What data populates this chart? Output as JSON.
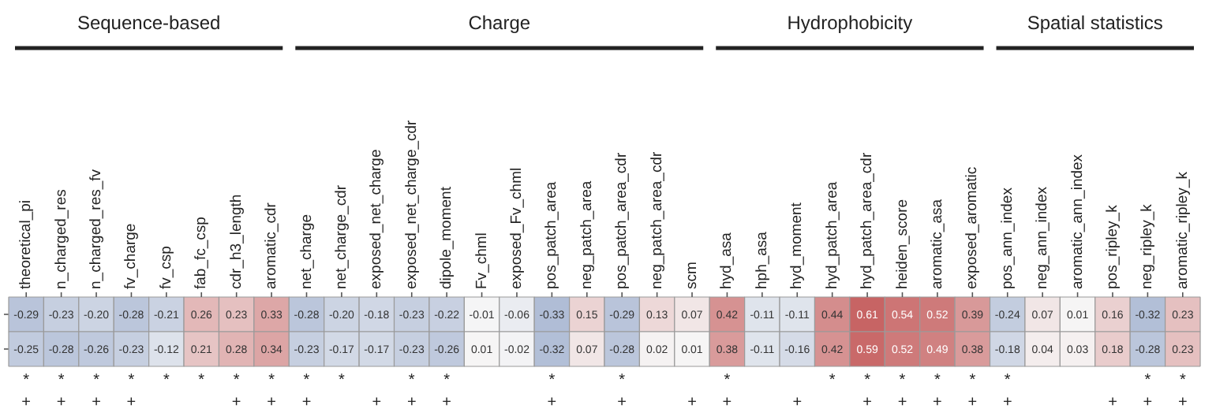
{
  "chart_data": [
    {
      "type": "heatmap",
      "categories": [
        "theoretical_pi",
        "n_charged_res",
        "n_charged_res_fv",
        "fv_charge",
        "fv_csp",
        "fab_fc_csp",
        "cdr_h3_length",
        "aromatic_cdr",
        "net_charge",
        "net_charge_cdr",
        "exposed_net_charge",
        "exposed_net_charge_cdr",
        "dipole_moment",
        "Fv_chml",
        "exposed_Fv_chml",
        "pos_patch_area",
        "neg_patch_area",
        "pos_patch_area_cdr",
        "neg_patch_area_cdr",
        "scm",
        "hyd_asa",
        "hph_asa",
        "hyd_moment",
        "hyd_patch_area",
        "hyd_patch_area_cdr",
        "heiden_score",
        "aromatic_asa",
        "exposed_aromatic",
        "pos_ann_index",
        "neg_ann_index",
        "aromatic_ann_index",
        "pos_ripley_k",
        "neg_ripley_k",
        "aromatic_ripley_k"
      ],
      "y_categories": [
        null,
        null
      ],
      "cells": [
        [
          -0.29,
          -0.23,
          -0.2,
          -0.28,
          -0.21,
          0.26,
          0.23,
          0.33,
          -0.28,
          -0.2,
          -0.18,
          -0.23,
          -0.22,
          -0.01,
          -0.06,
          -0.33,
          0.15,
          -0.29,
          0.13,
          0.07,
          0.42,
          -0.11,
          -0.11,
          0.44,
          0.61,
          0.54,
          0.52,
          0.39,
          -0.24,
          0.07,
          0.01,
          0.16,
          -0.32,
          0.23
        ],
        [
          -0.25,
          -0.28,
          -0.26,
          -0.23,
          -0.12,
          0.21,
          0.28,
          0.34,
          -0.23,
          -0.17,
          -0.17,
          -0.23,
          -0.26,
          0.01,
          -0.02,
          -0.32,
          0.07,
          -0.28,
          0.02,
          0.01,
          0.38,
          -0.11,
          -0.16,
          0.42,
          0.59,
          0.52,
          0.49,
          0.38,
          -0.18,
          0.04,
          0.03,
          0.18,
          -0.28,
          0.23
        ]
      ],
      "cell_labels": [
        [
          "-0.29",
          "-0.23",
          "-0.20",
          "-0.28",
          "-0.21",
          "0.26",
          "0.23",
          "0.33",
          "-0.28",
          "-0.20",
          "-0.18",
          "-0.23",
          "-0.22",
          "-0.01",
          "-0.06",
          "-0.33",
          "0.15",
          "-0.29",
          "0.13",
          "0.07",
          "0.42",
          "-0.11",
          "-0.11",
          "0.44",
          "0.61",
          "0.54",
          "0.52",
          "0.39",
          "-0.24",
          "0.07",
          "0.01",
          "0.16",
          "-0.32",
          "0.23"
        ],
        [
          "-0.25",
          "-0.28",
          "-0.26",
          "-0.23",
          "-0.12",
          "0.21",
          "0.28",
          "0.34",
          "-0.23",
          "-0.17",
          "-0.17",
          "-0.23",
          "-0.26",
          "0.01",
          "-0.02",
          "-0.32",
          "0.07",
          "-0.28",
          "0.02",
          "0.01",
          "0.38",
          "-0.11",
          "-0.16",
          "0.42",
          "0.59",
          "0.52",
          "0.49",
          "0.38",
          "-0.18",
          "0.04",
          "0.03",
          "0.18",
          "-0.28",
          "0.23"
        ]
      ],
      "annotations": [
        "Sequence-based",
        "Charge",
        "Hydrophobicity",
        "Spatial statistics"
      ]
    },
    {
      "type": "other",
      "annotations": [
        {
          "text": "*",
          "x": "theoretical_pi"
        },
        {
          "text": "*",
          "x": "n_charged_res"
        },
        {
          "text": "*",
          "x": "n_charged_res_fv"
        },
        {
          "text": "*",
          "x": "fv_charge"
        },
        {
          "text": "*",
          "x": "fv_csp"
        },
        {
          "text": "*",
          "x": "fab_fc_csp"
        },
        {
          "text": "*",
          "x": "cdr_h3_length"
        },
        {
          "text": "*",
          "x": "aromatic_cdr"
        },
        {
          "text": "*",
          "x": "net_charge"
        },
        {
          "text": "*",
          "x": "net_charge_cdr"
        },
        {
          "text": "*",
          "x": "exposed_net_charge_cdr"
        },
        {
          "text": "*",
          "x": "dipole_moment"
        },
        {
          "text": "*",
          "x": "pos_patch_area"
        },
        {
          "text": "*",
          "x": "pos_patch_area_cdr"
        },
        {
          "text": "*",
          "x": "hyd_asa"
        },
        {
          "text": "*",
          "x": "hyd_patch_area"
        },
        {
          "text": "*",
          "x": "hyd_patch_area_cdr"
        },
        {
          "text": "*",
          "x": "heiden_score"
        },
        {
          "text": "*",
          "x": "aromatic_asa"
        },
        {
          "text": "*",
          "x": "exposed_aromatic"
        },
        {
          "text": "*",
          "x": "pos_ann_index"
        },
        {
          "text": "*",
          "x": "neg_ripley_k"
        },
        {
          "text": "*",
          "x": "aromatic_ripley_k"
        }
      ]
    },
    {
      "type": "other",
      "annotations": [
        {
          "text": "+",
          "x": "theoretical_pi"
        },
        {
          "text": "+",
          "x": "n_charged_res"
        },
        {
          "text": "+",
          "x": "n_charged_res_fv"
        },
        {
          "text": "+",
          "x": "fv_charge"
        },
        {
          "text": "+",
          "x": "cdr_h3_length"
        },
        {
          "text": "+",
          "x": "aromatic_cdr"
        },
        {
          "text": "+",
          "x": "net_charge"
        },
        {
          "text": "+",
          "x": "exposed_net_charge"
        },
        {
          "text": "+",
          "x": "exposed_net_charge_cdr"
        },
        {
          "text": "+",
          "x": "dipole_moment"
        },
        {
          "text": "+",
          "x": "pos_patch_area"
        },
        {
          "text": "+",
          "x": "pos_patch_area_cdr"
        },
        {
          "text": "+",
          "x": "scm"
        },
        {
          "text": "+",
          "x": "hyd_asa"
        },
        {
          "text": "+",
          "x": "hyd_moment"
        },
        {
          "text": "+",
          "x": "hyd_patch_area_cdr"
        },
        {
          "text": "+",
          "x": "heiden_score"
        },
        {
          "text": "+",
          "x": "aromatic_asa"
        },
        {
          "text": "+",
          "x": "exposed_aromatic"
        },
        {
          "text": "+",
          "x": "pos_ann_index"
        },
        {
          "text": "+",
          "x": "pos_ripley_k"
        },
        {
          "text": "+",
          "x": "neg_ripley_k"
        },
        {
          "text": "+",
          "x": "aromatic_ripley_k"
        }
      ]
    }
  ]
}
